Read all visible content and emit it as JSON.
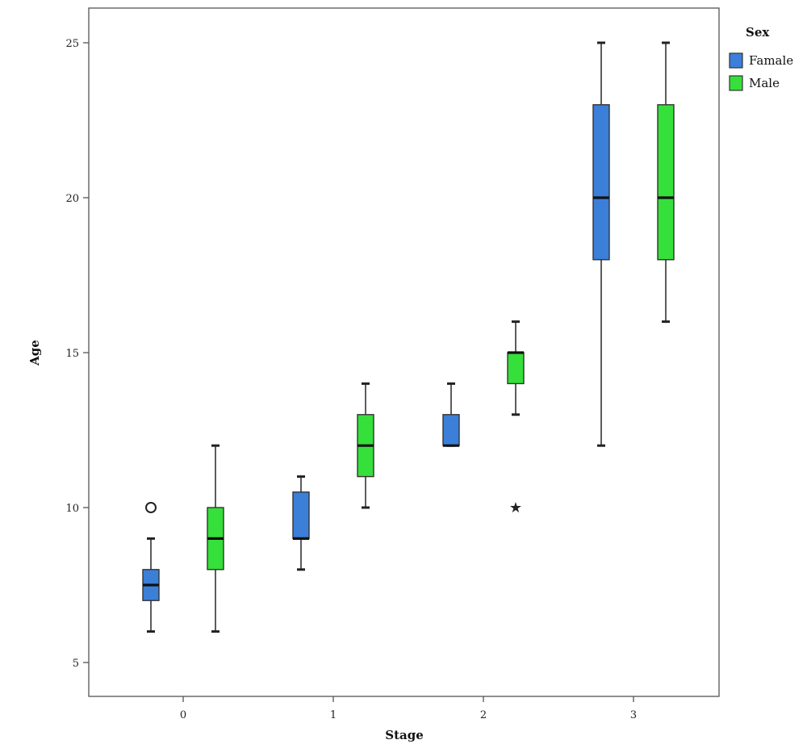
{
  "chart_data": {
    "type": "boxplot",
    "xlabel": "Stage",
    "ylabel": "Age",
    "categories": [
      "0",
      "1",
      "2",
      "3"
    ],
    "y_ticks": [
      5,
      10,
      15,
      20,
      25
    ],
    "ylim": [
      4.3,
      26.1
    ],
    "grid": false,
    "legend": {
      "title": "Sex",
      "placement": "right"
    },
    "series": [
      {
        "name": "Famale",
        "color": "#3b7fd9",
        "boxes": [
          {
            "category": "0",
            "min": 6,
            "q1": 7,
            "median": 7.5,
            "q3": 8,
            "max": 9,
            "outliers": [
              {
                "value": 10,
                "marker": "circle"
              }
            ]
          },
          {
            "category": "1",
            "min": 8,
            "q1": 9,
            "median": 9,
            "q3": 10.5,
            "max": 11,
            "outliers": []
          },
          {
            "category": "2",
            "min": 12,
            "q1": 12,
            "median": 12,
            "q3": 13,
            "max": 14,
            "outliers": []
          },
          {
            "category": "3",
            "min": 12,
            "q1": 18,
            "median": 20,
            "q3": 23,
            "max": 25,
            "outliers": []
          }
        ]
      },
      {
        "name": "Male",
        "color": "#35e03a",
        "boxes": [
          {
            "category": "0",
            "min": 6,
            "q1": 8,
            "median": 9,
            "q3": 10,
            "max": 12,
            "outliers": []
          },
          {
            "category": "1",
            "min": 10,
            "q1": 11,
            "median": 12,
            "q3": 13,
            "max": 14,
            "outliers": []
          },
          {
            "category": "2",
            "min": 13,
            "q1": 14,
            "median": 15,
            "q3": 15,
            "max": 16,
            "outliers": [
              {
                "value": 10,
                "marker": "star"
              }
            ]
          },
          {
            "category": "3",
            "min": 16,
            "q1": 18,
            "median": 20,
            "q3": 23,
            "max": 25,
            "outliers": []
          }
        ]
      }
    ]
  }
}
